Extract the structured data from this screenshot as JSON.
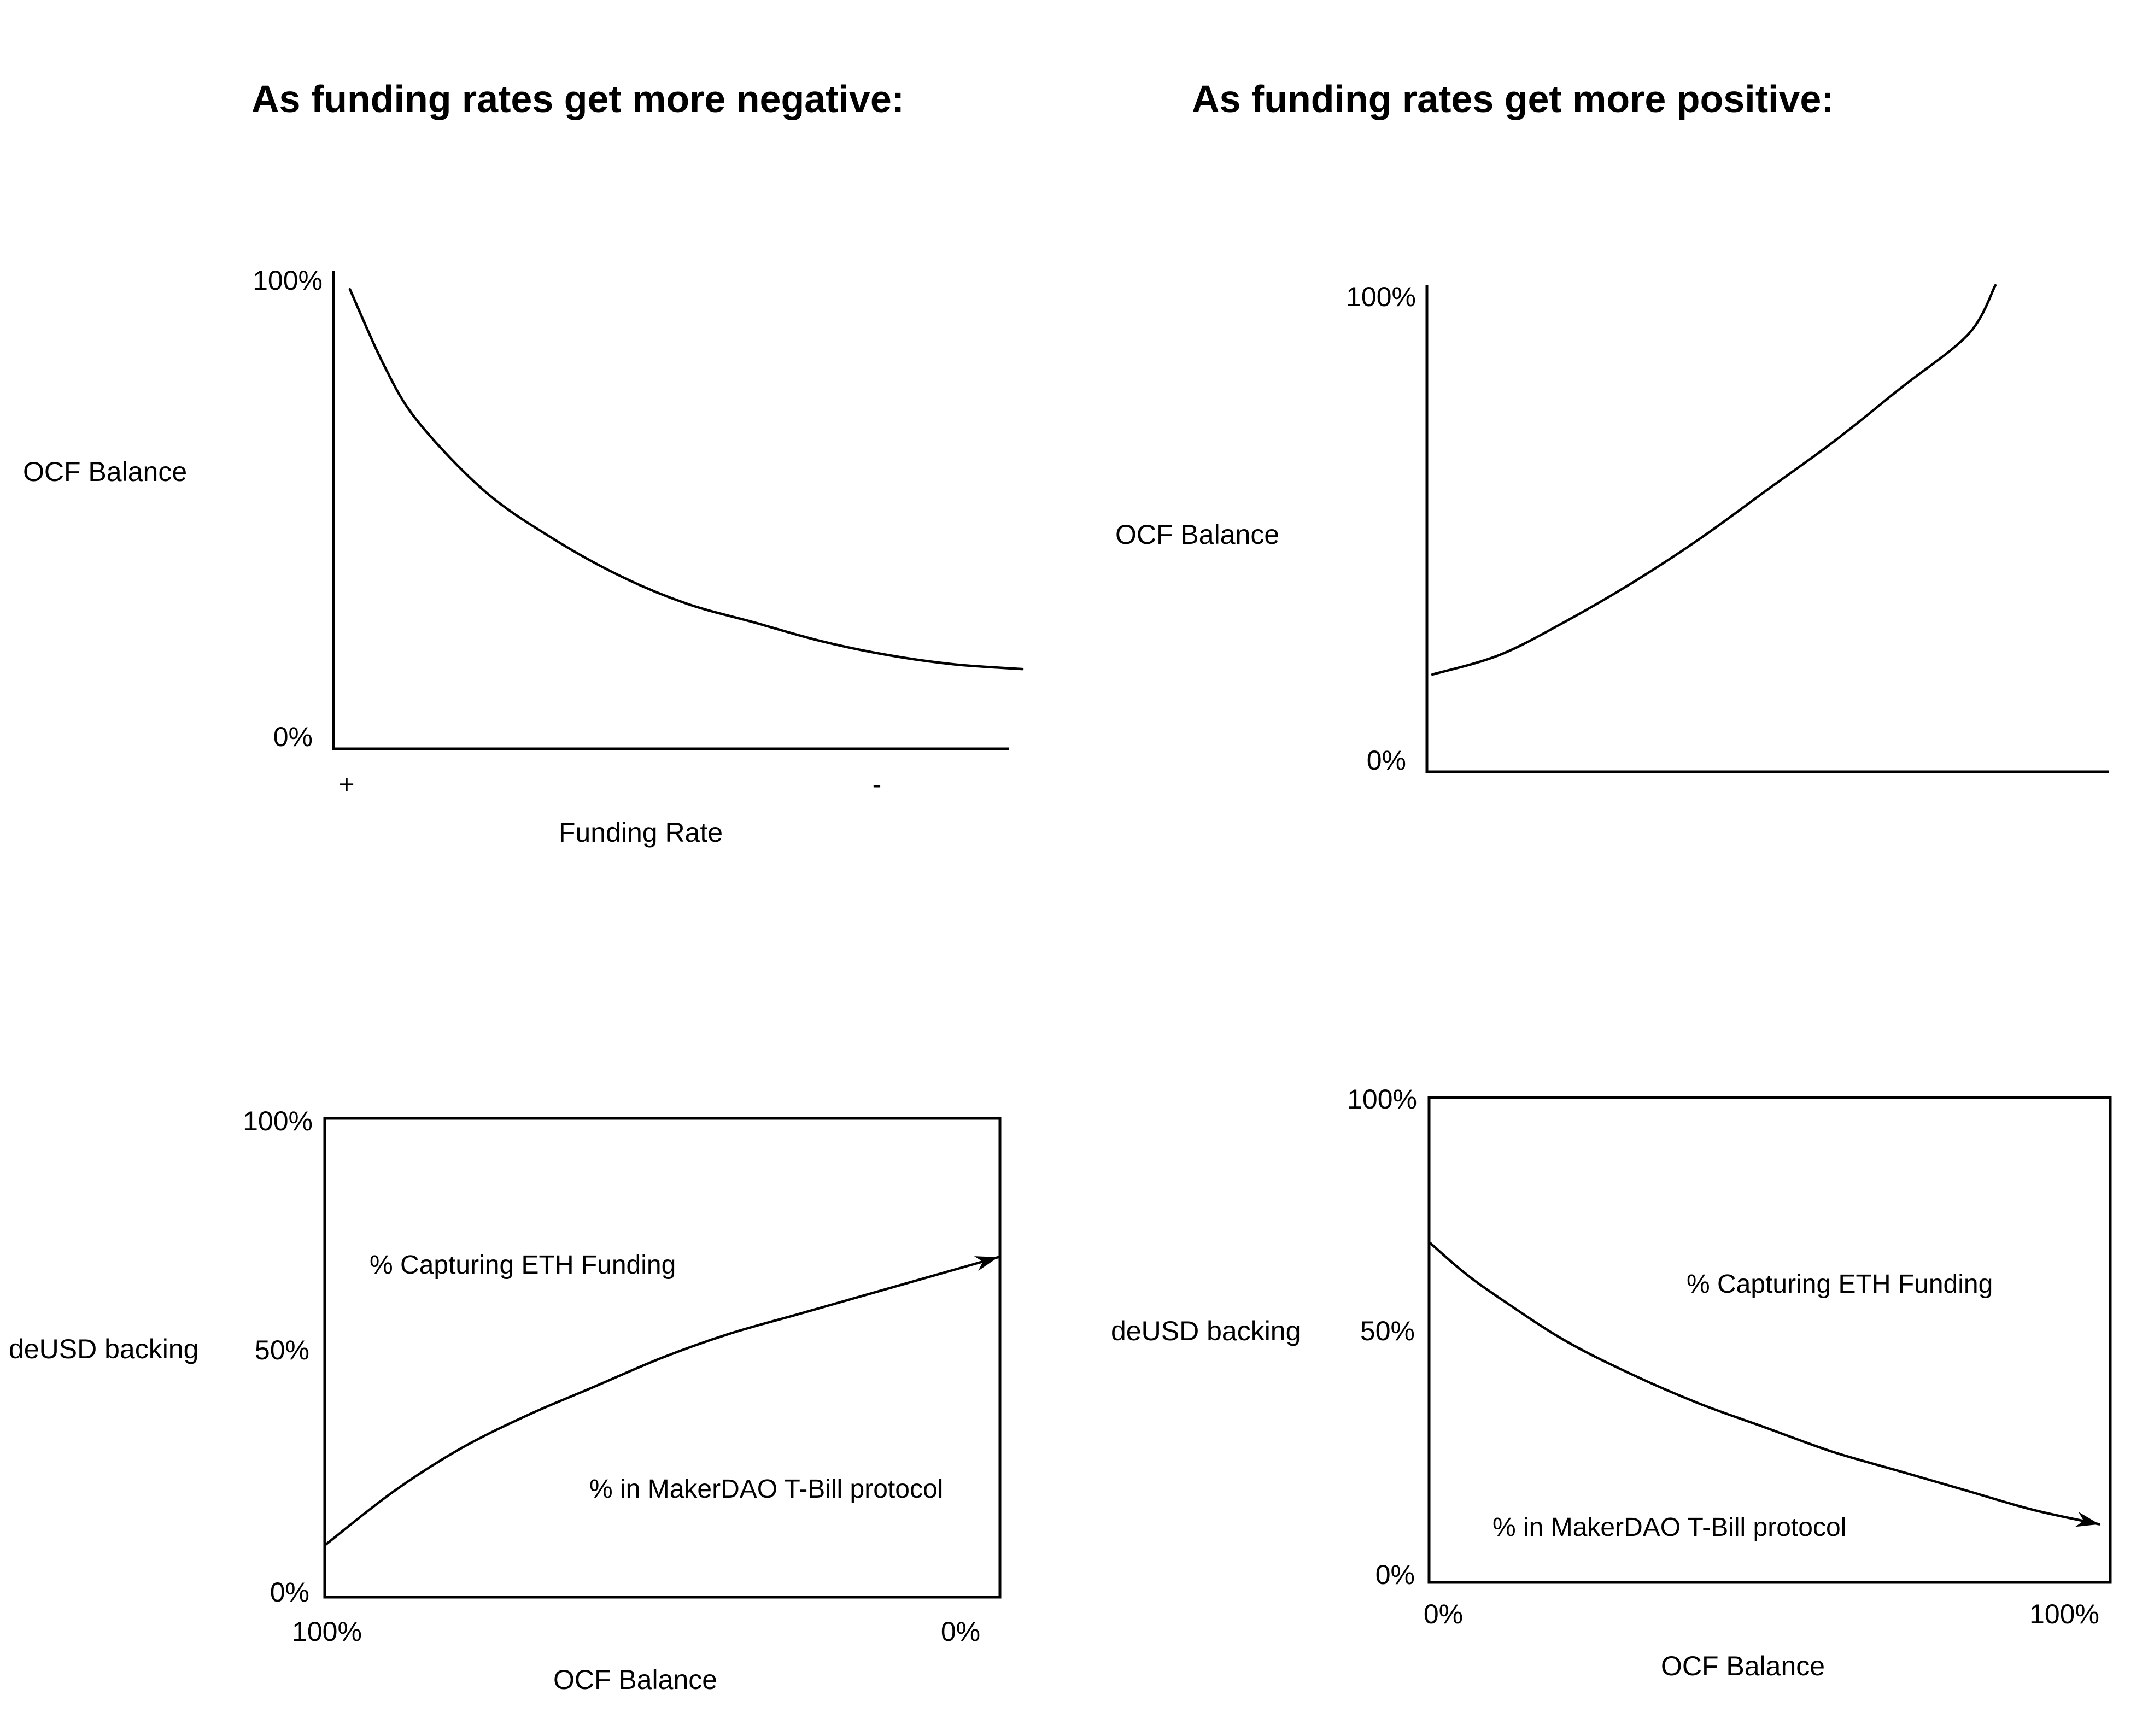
{
  "headings": {
    "left": "As funding rates get more negative:",
    "right": "As funding rates get more positive:"
  },
  "chart_data": [
    {
      "id": "top-left",
      "type": "line",
      "title": "",
      "xlabel": "Funding Rate",
      "ylabel": "OCF Balance",
      "x_ticks": [
        "+",
        "-"
      ],
      "y_ticks": [
        "100%",
        "0%"
      ],
      "ylim": [
        0,
        100
      ],
      "series": [
        {
          "x": [
            0,
            0.05,
            0.1,
            0.2,
            0.3,
            0.4,
            0.5,
            0.6,
            0.7,
            0.8,
            0.9,
            1.0
          ],
          "y": [
            98,
            82,
            70,
            55,
            45,
            37,
            31,
            27,
            23,
            20,
            18,
            17
          ]
        }
      ]
    },
    {
      "id": "top-right",
      "type": "line",
      "title": "",
      "xlabel": "",
      "ylabel": "OCF Balance",
      "x_ticks": [],
      "y_ticks": [
        "100%",
        "0%"
      ],
      "ylim": [
        0,
        100
      ],
      "series": [
        {
          "x": [
            0,
            0.1,
            0.2,
            0.3,
            0.4,
            0.5,
            0.6,
            0.7,
            0.8,
            0.84
          ],
          "y": [
            20,
            24,
            31,
            39,
            48,
            58,
            68,
            79,
            90,
            100
          ]
        }
      ]
    },
    {
      "id": "bottom-left",
      "type": "area",
      "title": "",
      "xlabel": "OCF Balance",
      "ylabel": "deUSD backing",
      "x_ticks": [
        "100%",
        "0%"
      ],
      "y_ticks": [
        "100%",
        "50%",
        "0%"
      ],
      "ylim": [
        0,
        100
      ],
      "annotations": [
        "% Capturing ETH Funding",
        "% in MakerDAO T-Bill protocol"
      ],
      "series": [
        {
          "x": [
            100,
            90,
            80,
            70,
            60,
            50,
            40,
            30,
            20,
            10,
            0
          ],
          "y": [
            11,
            22,
            31,
            38,
            44,
            50,
            55,
            59,
            63,
            67,
            71
          ]
        }
      ]
    },
    {
      "id": "bottom-right",
      "type": "area",
      "title": "",
      "xlabel": "OCF Balance",
      "ylabel": "deUSD backing",
      "x_ticks": [
        "0%",
        "100%"
      ],
      "y_ticks": [
        "100%",
        "50%",
        "0%"
      ],
      "ylim": [
        0,
        100
      ],
      "annotations": [
        "% Capturing ETH Funding",
        "% in MakerDAO T-Bill protocol"
      ],
      "series": [
        {
          "x": [
            0,
            5,
            10,
            20,
            30,
            40,
            50,
            60,
            70,
            80,
            90,
            100
          ],
          "y": [
            70,
            64,
            59,
            50,
            43,
            37,
            32,
            27,
            23,
            19,
            15,
            12
          ]
        }
      ]
    }
  ]
}
